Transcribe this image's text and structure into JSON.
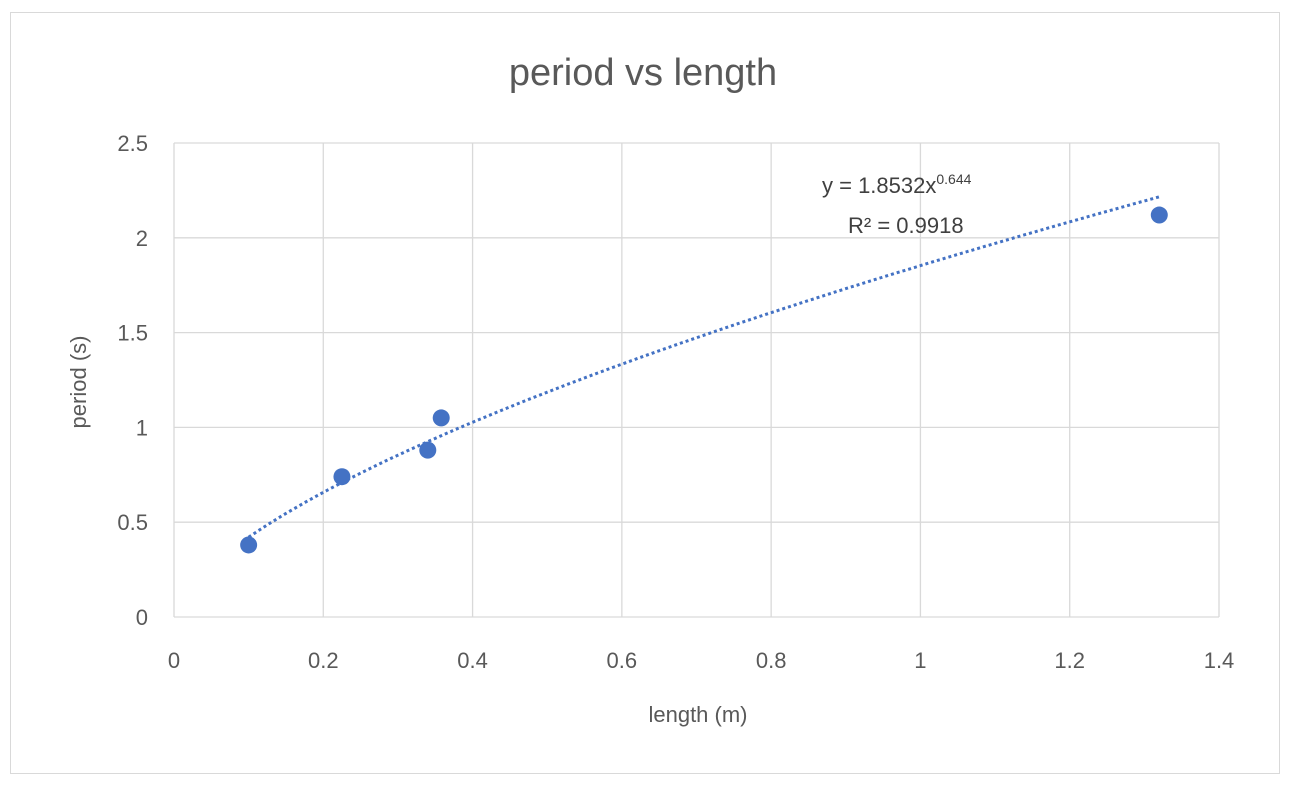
{
  "chart_data": {
    "type": "scatter",
    "title": "period vs length",
    "xlabel": "length (m)",
    "ylabel": "period (s)",
    "xlim": [
      0,
      1.4
    ],
    "ylim": [
      0,
      2.5
    ],
    "x_ticks": [
      0,
      0.2,
      0.4,
      0.6,
      0.8,
      1,
      1.2,
      1.4
    ],
    "y_ticks": [
      0,
      0.5,
      1,
      1.5,
      2,
      2.5
    ],
    "x_tick_labels": [
      "0",
      "0.2",
      "0.4",
      "0.6",
      "0.8",
      "1",
      "1.2",
      "1.4"
    ],
    "y_tick_labels": [
      "0",
      "0.5",
      "1",
      "1.5",
      "2",
      "2.5"
    ],
    "grid": true,
    "legend": "none",
    "series": [
      {
        "x": [
          0.1,
          0.225,
          0.34,
          0.358,
          1.32
        ],
        "y": [
          0.38,
          0.74,
          0.88,
          1.05,
          2.12
        ],
        "color": "#4472c4"
      }
    ],
    "trendline": {
      "type": "power",
      "coefficient": 1.8532,
      "exponent": 0.644,
      "x_range": [
        0.1,
        1.32
      ],
      "style": "dotted",
      "color": "#4472c4",
      "equation_prefix": "y = 1.8532x",
      "equation_exponent": "0.644",
      "r_squared": "R² = 0.9918"
    }
  }
}
